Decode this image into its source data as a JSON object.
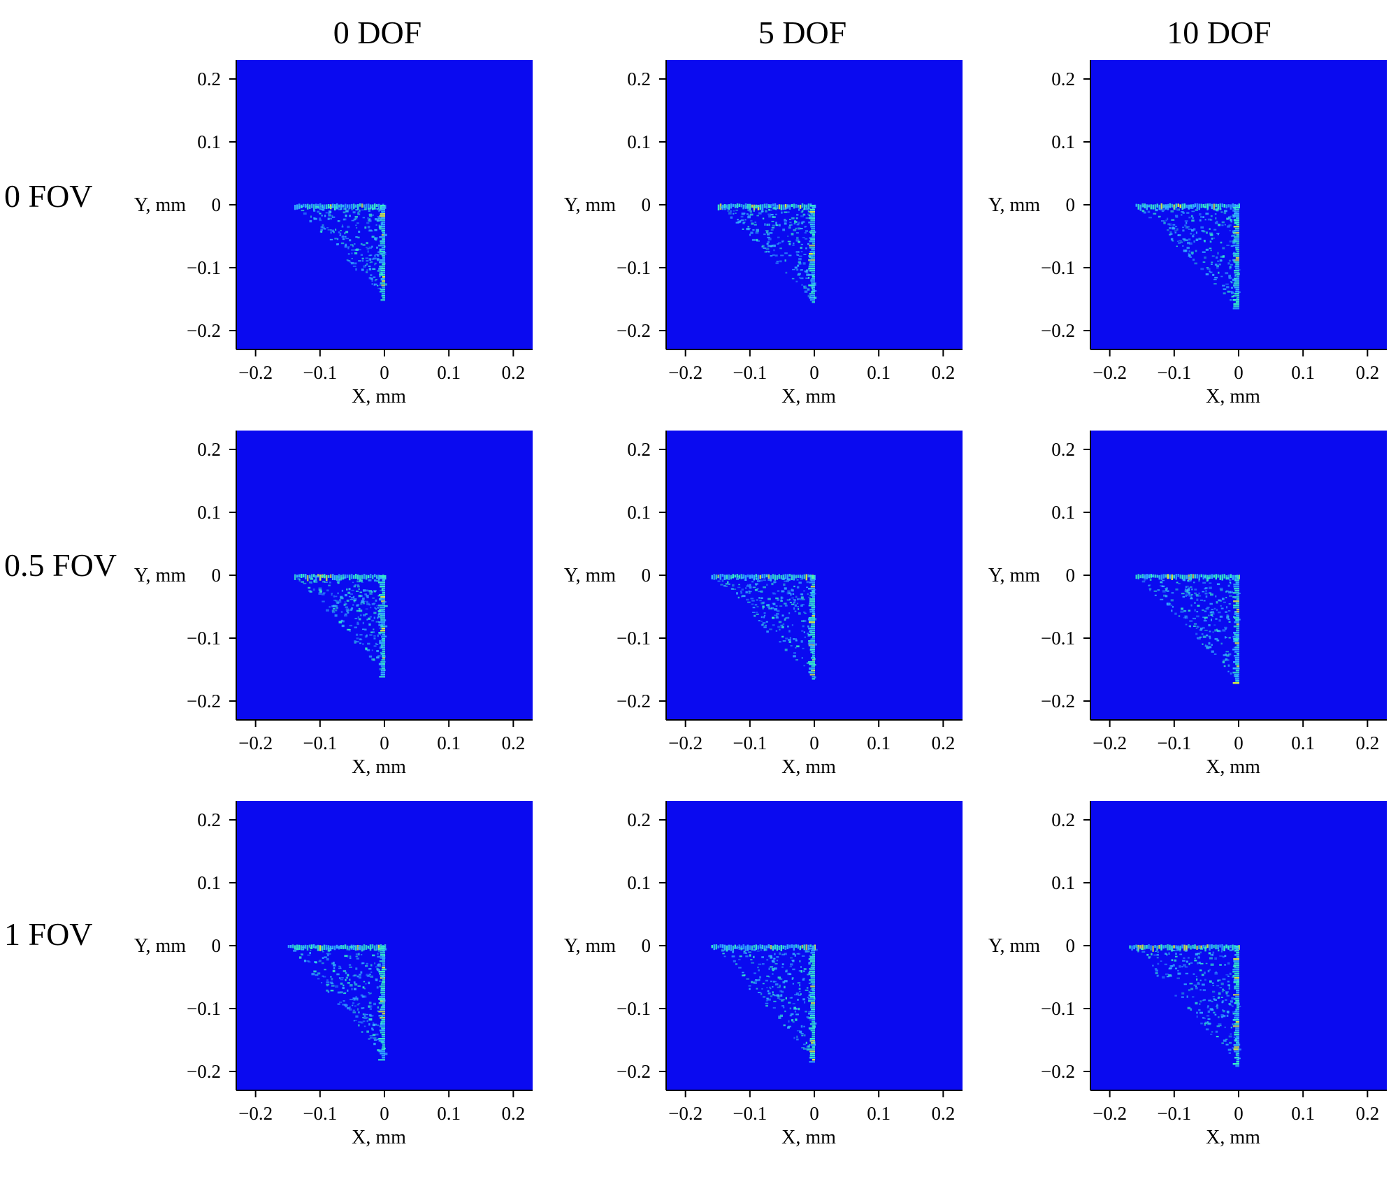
{
  "figure": {
    "column_labels": [
      "0 DOF",
      "5 DOF",
      "10 DOF"
    ],
    "row_labels": [
      "0 FOV",
      "0.5 FOV",
      "1 FOV"
    ],
    "colors": {
      "background": "#0a0af0",
      "spot_low": "#35b4ff",
      "spot_mid": "#36f2c8",
      "spot_high": "#d8f040",
      "axis": "#000000"
    }
  },
  "chart_data": [
    {
      "type": "heatmap",
      "row": "0 FOV",
      "col": "0 DOF",
      "xlabel": "X, mm",
      "ylabel": "Y, mm",
      "xlim": [
        -0.23,
        0.23
      ],
      "ylim": [
        -0.23,
        0.23
      ],
      "xticks": [
        -0.2,
        -0.1,
        0,
        0.1,
        0.2
      ],
      "xtick_labels": [
        "−0.2",
        "−0.1",
        "0",
        "0.1",
        "0.2"
      ],
      "yticks": [
        0.2,
        0.1,
        0,
        -0.1,
        -0.2
      ],
      "ytick_labels": [
        "0.2",
        "0.1",
        "0",
        "−0.1",
        "−0.2"
      ],
      "spot": {
        "x_min": -0.14,
        "x_max": 0,
        "y_min": -0.15,
        "y_max": 0
      },
      "grid": false
    },
    {
      "type": "heatmap",
      "row": "0 FOV",
      "col": "5 DOF",
      "xlabel": "X, mm",
      "ylabel": "Y, mm",
      "xlim": [
        -0.23,
        0.23
      ],
      "ylim": [
        -0.23,
        0.23
      ],
      "xticks": [
        -0.2,
        -0.1,
        0,
        0.1,
        0.2
      ],
      "xtick_labels": [
        "−0.2",
        "−0.1",
        "0",
        "0.1",
        "0.2"
      ],
      "yticks": [
        0.2,
        0.1,
        0,
        -0.1,
        -0.2
      ],
      "ytick_labels": [
        "0.2",
        "0.1",
        "0",
        "−0.1",
        "−0.2"
      ],
      "spot": {
        "x_min": -0.15,
        "x_max": 0,
        "y_min": -0.155,
        "y_max": 0
      },
      "grid": false
    },
    {
      "type": "heatmap",
      "row": "0 FOV",
      "col": "10 DOF",
      "xlabel": "X, mm",
      "ylabel": "Y, mm",
      "xlim": [
        -0.23,
        0.23
      ],
      "ylim": [
        -0.23,
        0.23
      ],
      "xticks": [
        -0.2,
        -0.1,
        0,
        0.1,
        0.2
      ],
      "xtick_labels": [
        "−0.2",
        "−0.1",
        "0",
        "0.1",
        "0.2"
      ],
      "yticks": [
        0.2,
        0.1,
        0,
        -0.1,
        -0.2
      ],
      "ytick_labels": [
        "0.2",
        "0.1",
        "0",
        "−0.1",
        "−0.2"
      ],
      "spot": {
        "x_min": -0.16,
        "x_max": 0,
        "y_min": -0.165,
        "y_max": 0
      },
      "grid": false
    },
    {
      "type": "heatmap",
      "row": "0.5 FOV",
      "col": "0 DOF",
      "xlabel": "X, mm",
      "ylabel": "Y, mm",
      "xlim": [
        -0.23,
        0.23
      ],
      "ylim": [
        -0.23,
        0.23
      ],
      "xticks": [
        -0.2,
        -0.1,
        0,
        0.1,
        0.2
      ],
      "xtick_labels": [
        "−0.2",
        "−0.1",
        "0",
        "0.1",
        "0.2"
      ],
      "yticks": [
        0.2,
        0.1,
        0,
        -0.1,
        -0.2
      ],
      "ytick_labels": [
        "0.2",
        "0.1",
        "0",
        "−0.1",
        "−0.2"
      ],
      "spot": {
        "x_min": -0.14,
        "x_max": 0,
        "y_min": -0.16,
        "y_max": 0
      },
      "grid": false
    },
    {
      "type": "heatmap",
      "row": "0.5 FOV",
      "col": "5 DOF",
      "xlabel": "X, mm",
      "ylabel": "Y, mm",
      "xlim": [
        -0.23,
        0.23
      ],
      "ylim": [
        -0.23,
        0.23
      ],
      "xticks": [
        -0.2,
        -0.1,
        0,
        0.1,
        0.2
      ],
      "xtick_labels": [
        "−0.2",
        "−0.1",
        "0",
        "0.1",
        "0.2"
      ],
      "yticks": [
        0.2,
        0.1,
        0,
        -0.1,
        -0.2
      ],
      "ytick_labels": [
        "0.2",
        "0.1",
        "0",
        "−0.1",
        "−0.2"
      ],
      "spot": {
        "x_min": -0.16,
        "x_max": 0,
        "y_min": -0.165,
        "y_max": 0
      },
      "grid": false
    },
    {
      "type": "heatmap",
      "row": "0.5 FOV",
      "col": "10 DOF",
      "xlabel": "X, mm",
      "ylabel": "Y, mm",
      "xlim": [
        -0.23,
        0.23
      ],
      "ylim": [
        -0.23,
        0.23
      ],
      "xticks": [
        -0.2,
        -0.1,
        0,
        0.1,
        0.2
      ],
      "xtick_labels": [
        "−0.2",
        "−0.1",
        "0",
        "0.1",
        "0.2"
      ],
      "yticks": [
        0.2,
        0.1,
        0,
        -0.1,
        -0.2
      ],
      "ytick_labels": [
        "0.2",
        "0.1",
        "0",
        "−0.1",
        "−0.2"
      ],
      "spot": {
        "x_min": -0.16,
        "x_max": 0,
        "y_min": -0.17,
        "y_max": 0
      },
      "grid": false
    },
    {
      "type": "heatmap",
      "row": "1 FOV",
      "col": "0 DOF",
      "xlabel": "X, mm",
      "ylabel": "Y, mm",
      "xlim": [
        -0.23,
        0.23
      ],
      "ylim": [
        -0.23,
        0.23
      ],
      "xticks": [
        -0.2,
        -0.1,
        0,
        0.1,
        0.2
      ],
      "xtick_labels": [
        "−0.2",
        "−0.1",
        "0",
        "0.1",
        "0.2"
      ],
      "yticks": [
        0.2,
        0.1,
        0,
        -0.1,
        -0.2
      ],
      "ytick_labels": [
        "0.2",
        "0.1",
        "0",
        "−0.1",
        "−0.2"
      ],
      "spot": {
        "x_min": -0.15,
        "x_max": 0,
        "y_min": -0.18,
        "y_max": 0
      },
      "grid": false
    },
    {
      "type": "heatmap",
      "row": "1 FOV",
      "col": "5 DOF",
      "xlabel": "X, mm",
      "ylabel": "Y, mm",
      "xlim": [
        -0.23,
        0.23
      ],
      "ylim": [
        -0.23,
        0.23
      ],
      "xticks": [
        -0.2,
        -0.1,
        0,
        0.1,
        0.2
      ],
      "xtick_labels": [
        "−0.2",
        "−0.1",
        "0",
        "0.1",
        "0.2"
      ],
      "yticks": [
        0.2,
        0.1,
        0,
        -0.1,
        -0.2
      ],
      "ytick_labels": [
        "0.2",
        "0.1",
        "0",
        "−0.1",
        "−0.2"
      ],
      "spot": {
        "x_min": -0.16,
        "x_max": 0,
        "y_min": -0.185,
        "y_max": 0
      },
      "grid": false
    },
    {
      "type": "heatmap",
      "row": "1 FOV",
      "col": "10 DOF",
      "xlabel": "X, mm",
      "ylabel": "Y, mm",
      "xlim": [
        -0.23,
        0.23
      ],
      "ylim": [
        -0.23,
        0.23
      ],
      "xticks": [
        -0.2,
        -0.1,
        0,
        0.1,
        0.2
      ],
      "xtick_labels": [
        "−0.2",
        "−0.1",
        "0",
        "0.1",
        "0.2"
      ],
      "yticks": [
        0.2,
        0.1,
        0,
        -0.1,
        -0.2
      ],
      "ytick_labels": [
        "0.2",
        "0.1",
        "0",
        "−0.1",
        "−0.2"
      ],
      "spot": {
        "x_min": -0.17,
        "x_max": 0,
        "y_min": -0.19,
        "y_max": 0
      },
      "grid": false
    }
  ]
}
